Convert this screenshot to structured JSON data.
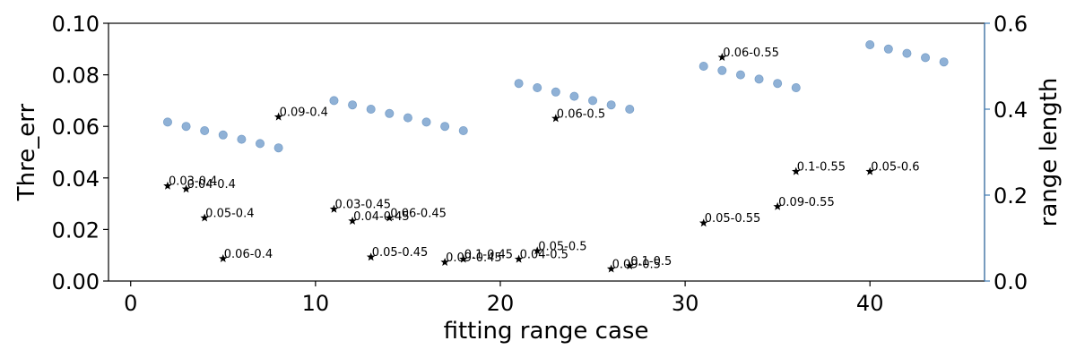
{
  "chart_data": {
    "type": "scatter",
    "title": "",
    "xlabel": "fitting range case",
    "ylabel": "Thre_err",
    "ylabel_right": "range length",
    "xlim": [
      -1.2,
      46.2
    ],
    "ylim": [
      0,
      0.1
    ],
    "ylim_right": [
      0,
      0.6
    ],
    "x_ticks": [
      0,
      10,
      20,
      30,
      40
    ],
    "x_tick_labels": [
      "0",
      "10",
      "20",
      "30",
      "40"
    ],
    "y_ticks": [
      0,
      0.02,
      0.04,
      0.06,
      0.08,
      0.1
    ],
    "y_tick_labels": [
      "0.00",
      "0.02",
      "0.04",
      "0.06",
      "0.08",
      "0.10"
    ],
    "y_ticks_right": [
      0,
      0.2,
      0.4,
      0.6
    ],
    "y_tick_labels_right": [
      "0.0",
      "0.2",
      "0.4",
      "0.6"
    ],
    "grid": false,
    "legend": "none",
    "colors": {
      "error_marker": "#000000",
      "range_marker": "#8fb1d6",
      "right_axis": "#3f7bb4"
    },
    "series": [
      {
        "axis": "left",
        "marker": "star",
        "points": [
          {
            "x": 2,
            "y": 0.0369,
            "label": "0.03-0.4"
          },
          {
            "x": 3,
            "y": 0.0357,
            "label": "0.04-0.4"
          },
          {
            "x": 4,
            "y": 0.0245,
            "label": "0.05-0.4"
          },
          {
            "x": 5,
            "y": 0.0087,
            "label": "0.06-0.4"
          },
          {
            "x": 8,
            "y": 0.0637,
            "label": "0.09-0.4"
          },
          {
            "x": 11,
            "y": 0.0279,
            "label": "0.03-0.45"
          },
          {
            "x": 12,
            "y": 0.0233,
            "label": "0.04-0.45"
          },
          {
            "x": 14,
            "y": 0.0245,
            "label": "0.06-0.45"
          },
          {
            "x": 13,
            "y": 0.0093,
            "label": "0.05-0.45"
          },
          {
            "x": 17,
            "y": 0.0073,
            "label": "0.09-0.45"
          },
          {
            "x": 18,
            "y": 0.0085,
            "label": "0.1-0.45"
          },
          {
            "x": 21,
            "y": 0.0085,
            "label": "0.04-0.5"
          },
          {
            "x": 22,
            "y": 0.0117,
            "label": "0.05-0.5"
          },
          {
            "x": 23,
            "y": 0.0631,
            "label": "0.06-0.5"
          },
          {
            "x": 26,
            "y": 0.0047,
            "label": "0.09-0.5"
          },
          {
            "x": 27,
            "y": 0.0059,
            "label": "0.1-0.5"
          },
          {
            "x": 31,
            "y": 0.0225,
            "label": "0.05-0.55"
          },
          {
            "x": 32,
            "y": 0.0868,
            "label": "0.06-0.55"
          },
          {
            "x": 35,
            "y": 0.0289,
            "label": "0.09-0.55"
          },
          {
            "x": 36,
            "y": 0.0425,
            "label": "0.1-0.55"
          },
          {
            "x": 40,
            "y": 0.0425,
            "label": "0.05-0.6"
          }
        ]
      },
      {
        "axis": "right",
        "marker": "circle",
        "points": [
          {
            "x": 2,
            "y": 0.37
          },
          {
            "x": 3,
            "y": 0.36
          },
          {
            "x": 4,
            "y": 0.35
          },
          {
            "x": 5,
            "y": 0.34
          },
          {
            "x": 6,
            "y": 0.33
          },
          {
            "x": 7,
            "y": 0.32
          },
          {
            "x": 8,
            "y": 0.31
          },
          {
            "x": 11,
            "y": 0.42
          },
          {
            "x": 12,
            "y": 0.41
          },
          {
            "x": 13,
            "y": 0.4
          },
          {
            "x": 14,
            "y": 0.39
          },
          {
            "x": 15,
            "y": 0.38
          },
          {
            "x": 16,
            "y": 0.37
          },
          {
            "x": 17,
            "y": 0.36
          },
          {
            "x": 18,
            "y": 0.35
          },
          {
            "x": 21,
            "y": 0.46
          },
          {
            "x": 22,
            "y": 0.45
          },
          {
            "x": 23,
            "y": 0.44
          },
          {
            "x": 24,
            "y": 0.43
          },
          {
            "x": 25,
            "y": 0.42
          },
          {
            "x": 26,
            "y": 0.41
          },
          {
            "x": 27,
            "y": 0.4
          },
          {
            "x": 31,
            "y": 0.5
          },
          {
            "x": 32,
            "y": 0.49
          },
          {
            "x": 33,
            "y": 0.48
          },
          {
            "x": 34,
            "y": 0.47
          },
          {
            "x": 35,
            "y": 0.46
          },
          {
            "x": 36,
            "y": 0.45
          },
          {
            "x": 40,
            "y": 0.55
          },
          {
            "x": 41,
            "y": 0.54
          },
          {
            "x": 42,
            "y": 0.53
          },
          {
            "x": 43,
            "y": 0.52
          },
          {
            "x": 44,
            "y": 0.51
          }
        ]
      }
    ]
  }
}
